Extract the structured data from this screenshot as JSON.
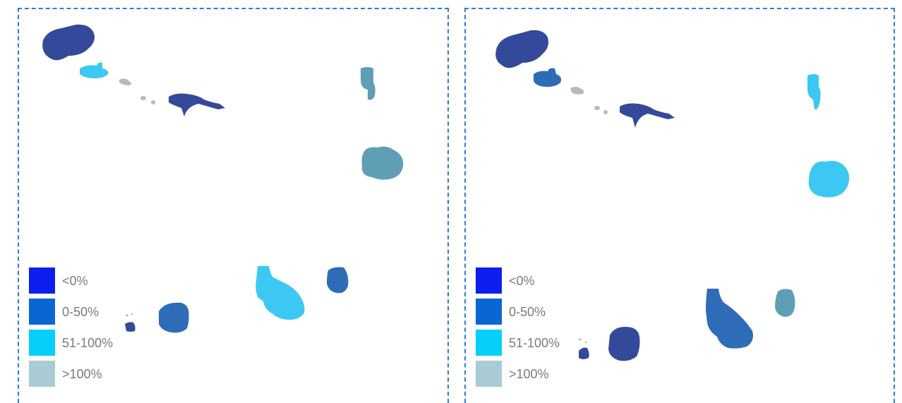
{
  "legend": {
    "items": [
      {
        "label": "<0%",
        "color": "#0c1ff0"
      },
      {
        "label": "0-50%",
        "color": "#0a66d3"
      },
      {
        "label": "51-100%",
        "color": "#05d0fa"
      },
      {
        "label": ">100%",
        "color": "#a8cbd5"
      }
    ]
  },
  "map_colors": {
    "dark_blue": "#35499b",
    "mid_blue": "#2f6cb8",
    "light_cyan": "#3cc8f2",
    "teal": "#5f9fb6",
    "gray": "#b9b9b9"
  },
  "maps": [
    {
      "name": "left-map"
    },
    {
      "name": "right-map"
    }
  ]
}
